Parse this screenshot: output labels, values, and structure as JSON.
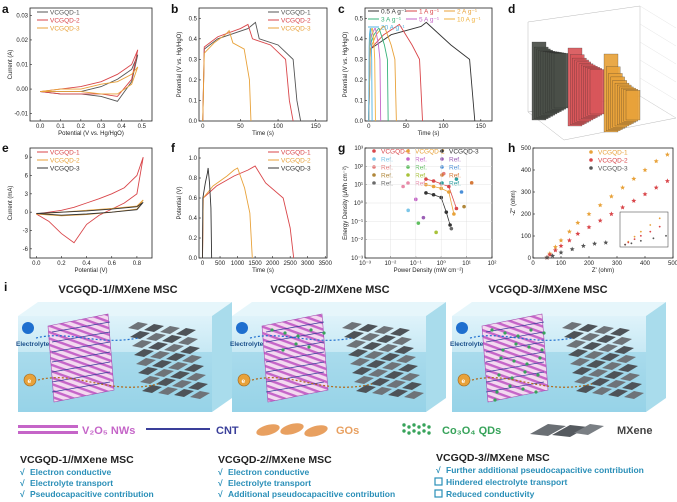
{
  "panel_labels": {
    "a": "a",
    "b": "b",
    "c": "c",
    "d": "d",
    "e": "e",
    "f": "f",
    "g": "g",
    "h": "h",
    "i": "i"
  },
  "colors": {
    "vcgqd1": "#555555",
    "vcgqd2": "#d9464a",
    "vcgqd3": "#e8a23a",
    "water": "#bfe6f2",
    "mxene": "#555a5f"
  },
  "chart_data": [
    {
      "id": "a",
      "type": "line",
      "xlabel": "Potential (V vs. Hg/HgO)",
      "ylabel": "Current (A)",
      "xticks": [
        "0.0",
        "0.1",
        "0.2",
        "0.3",
        "0.4",
        "0.5"
      ],
      "yticks": [
        "-0.01",
        "0.00",
        "0.01",
        "0.02",
        "0.03"
      ],
      "xlim": [
        -0.05,
        0.55
      ],
      "ylim": [
        -0.013,
        0.033
      ],
      "series": [
        {
          "name": "VCGQD-1",
          "color": "#555555",
          "x": [
            0,
            0.1,
            0.2,
            0.3,
            0.38,
            0.45,
            0.48,
            0.45,
            0.38,
            0.3,
            0.2,
            0.1,
            0
          ],
          "y": [
            -0.001,
            -0.001,
            -0.001,
            0.001,
            0.004,
            0.008,
            0.014,
            0.003,
            -0.005,
            -0.003,
            -0.002,
            -0.002,
            -0.001
          ]
        },
        {
          "name": "VCGQD-2",
          "color": "#d9464a",
          "x": [
            0,
            0.1,
            0.2,
            0.3,
            0.38,
            0.45,
            0.48,
            0.45,
            0.38,
            0.3,
            0.2,
            0.1,
            0
          ],
          "y": [
            -0.001,
            0,
            0.001,
            0.003,
            0.006,
            0.01,
            0.016,
            0.004,
            -0.003,
            -0.002,
            -0.002,
            -0.002,
            -0.001
          ]
        },
        {
          "name": "VCGQD-3",
          "color": "#e8a23a",
          "x": [
            0,
            0.1,
            0.2,
            0.3,
            0.38,
            0.45,
            0.48,
            0.45,
            0.38,
            0.3,
            0.2,
            0.1,
            0
          ],
          "y": [
            -0.001,
            0,
            0,
            0.002,
            0.003,
            0.006,
            0.009,
            0.002,
            -0.002,
            -0.002,
            -0.001,
            -0.001,
            -0.001
          ]
        }
      ]
    },
    {
      "id": "b",
      "type": "line",
      "xlabel": "Time (s)",
      "ylabel": "Potential (V vs. Hg/HgO)",
      "xticks": [
        "0",
        "50",
        "100",
        "150"
      ],
      "yticks": [
        "0.0",
        "0.1",
        "0.2",
        "0.3",
        "0.4",
        "0.5"
      ],
      "xlim": [
        -5,
        165
      ],
      "ylim": [
        0,
        0.55
      ],
      "series": [
        {
          "name": "VCGQD-1",
          "color": "#555555",
          "x": [
            0,
            2,
            20,
            60,
            70,
            75,
            100,
            120,
            125,
            130
          ],
          "y": [
            0,
            0.35,
            0.4,
            0.45,
            0.48,
            0.4,
            0.37,
            0.3,
            0.1,
            0
          ]
        },
        {
          "name": "VCGQD-2",
          "color": "#d9464a",
          "x": [
            0,
            2,
            20,
            50,
            60,
            66,
            90,
            110,
            115,
            120
          ],
          "y": [
            0,
            0.36,
            0.41,
            0.45,
            0.47,
            0.4,
            0.37,
            0.3,
            0.1,
            0
          ]
        },
        {
          "name": "VCGQD-3",
          "color": "#e8a23a",
          "x": [
            0,
            2,
            15,
            30,
            35,
            40,
            55,
            62,
            64
          ],
          "y": [
            0,
            0.33,
            0.38,
            0.42,
            0.44,
            0.38,
            0.35,
            0.2,
            0
          ]
        }
      ]
    },
    {
      "id": "c",
      "type": "line",
      "xlabel": "Time (s)",
      "ylabel": "Potential (V vs. Hg/HgO)",
      "xticks": [
        "0",
        "50",
        "100",
        "150"
      ],
      "yticks": [
        "0.0",
        "0.1",
        "0.2",
        "0.3",
        "0.4",
        "0.5"
      ],
      "xlim": [
        -5,
        165
      ],
      "ylim": [
        0,
        0.55
      ],
      "series": [
        {
          "name": "0.5 A g⁻¹",
          "color": "#333333",
          "x": [
            0,
            2,
            30,
            70,
            77,
            110,
            135,
            142
          ],
          "y": [
            0,
            0.35,
            0.42,
            0.46,
            0.48,
            0.37,
            0.3,
            0
          ]
        },
        {
          "name": "1 A g⁻¹",
          "color": "#d9464a",
          "x": [
            0,
            2,
            20,
            37,
            41,
            58,
            68,
            72
          ],
          "y": [
            0,
            0.35,
            0.42,
            0.46,
            0.47,
            0.37,
            0.3,
            0
          ]
        },
        {
          "name": "2 A g⁻¹",
          "color": "#e8a23a",
          "x": [
            0,
            2,
            10,
            19,
            21,
            30,
            35,
            37
          ],
          "y": [
            0,
            0.35,
            0.42,
            0.46,
            0.46,
            0.37,
            0.3,
            0
          ]
        },
        {
          "name": "3 A g⁻¹",
          "color": "#37b37a",
          "x": [
            0,
            1,
            7,
            13,
            14,
            21,
            25,
            26
          ],
          "y": [
            0,
            0.36,
            0.42,
            0.45,
            0.45,
            0.37,
            0.3,
            0
          ]
        },
        {
          "name": "5 A g⁻¹",
          "color": "#c565c8",
          "x": [
            0,
            1,
            4,
            8,
            9,
            13,
            15,
            16
          ],
          "y": [
            0,
            0.36,
            0.42,
            0.45,
            0.45,
            0.37,
            0.3,
            0
          ]
        },
        {
          "name": "10 A g⁻¹",
          "color": "#f0b23e",
          "x": [
            0,
            1,
            2,
            4,
            5,
            7,
            8,
            9
          ],
          "y": [
            0,
            0.36,
            0.42,
            0.45,
            0.45,
            0.37,
            0.3,
            0
          ]
        },
        {
          "name": "20 A g⁻¹",
          "color": "#4fb3e0",
          "x": [
            0,
            0.5,
            1,
            2,
            2.5,
            3.5,
            4,
            4.5
          ],
          "y": [
            0,
            0.36,
            0.42,
            0.45,
            0.45,
            0.37,
            0.3,
            0
          ]
        }
      ]
    },
    {
      "id": "d",
      "type": "bar",
      "series": [
        {
          "name": "VCGQD-1",
          "color": "#4a4f48",
          "values": [
            100,
            92,
            88,
            85,
            82,
            80,
            78,
            76,
            74,
            72,
            70
          ]
        },
        {
          "name": "VCGQD-2",
          "color": "#d9565a",
          "values": [
            100,
            90,
            84,
            80,
            76,
            72,
            69,
            66,
            63,
            60,
            57
          ]
        },
        {
          "name": "VCGQD-3",
          "color": "#e8a23a",
          "values": [
            100,
            82,
            72,
            66,
            60,
            55,
            51,
            47,
            44,
            41,
            38
          ]
        }
      ]
    },
    {
      "id": "e",
      "type": "line",
      "xlabel": "Potential (V)",
      "ylabel": "Current (mA)",
      "xticks": [
        "0.0",
        "0.2",
        "0.4",
        "0.6",
        "0.8"
      ],
      "yticks": [
        "-6",
        "-3",
        "0",
        "3",
        "6",
        "9"
      ],
      "xlim": [
        -0.05,
        0.92
      ],
      "ylim": [
        -7.5,
        10.5
      ],
      "series": [
        {
          "name": "VCGQD-1",
          "color": "#d9464a",
          "x": [
            0,
            0.1,
            0.2,
            0.3,
            0.4,
            0.5,
            0.6,
            0.7,
            0.8,
            0.85,
            0.8,
            0.7,
            0.6,
            0.5,
            0.4,
            0.3,
            0.2,
            0.1,
            0
          ],
          "y": [
            -0.3,
            0,
            0.3,
            0.8,
            1.5,
            2.2,
            3,
            4,
            6,
            9,
            3,
            1.5,
            0.5,
            -0.5,
            -2,
            -5,
            -3.5,
            -1.5,
            -0.3
          ]
        },
        {
          "name": "VCGQD-2",
          "color": "#e8a23a",
          "x": [
            0,
            0.2,
            0.4,
            0.6,
            0.8,
            0.85,
            0.8,
            0.6,
            0.4,
            0.2,
            0
          ],
          "y": [
            -0.3,
            0,
            0.3,
            0.6,
            1,
            2,
            0.5,
            0,
            -0.4,
            -0.6,
            -0.3
          ]
        },
        {
          "name": "VCGQD-3",
          "color": "#333333",
          "x": [
            0,
            0.2,
            0.4,
            0.6,
            0.8,
            0.85,
            0.8,
            0.6,
            0.4,
            0.2,
            0
          ],
          "y": [
            -0.2,
            0,
            0.2,
            0.5,
            0.9,
            1.6,
            0.4,
            0,
            -0.3,
            -0.5,
            -0.2
          ]
        }
      ]
    },
    {
      "id": "f",
      "type": "line",
      "xlabel": "Time (s)",
      "ylabel": "Potential (V)",
      "xticks": [
        "0",
        "500",
        "1000",
        "1500",
        "2000",
        "2500",
        "3000",
        "3500"
      ],
      "yticks": [
        "0.0",
        "0.2",
        "0.4",
        "0.6",
        "0.8",
        "1.0"
      ],
      "xlim": [
        -100,
        3550
      ],
      "ylim": [
        0,
        1.1
      ],
      "series": [
        {
          "name": "VCGQD-1",
          "color": "#d9464a",
          "x": [
            0,
            20,
            400,
            900,
            1300,
            1500,
            1800,
            2300,
            2500,
            2600
          ],
          "y": [
            0,
            0.6,
            0.72,
            0.82,
            0.88,
            0.92,
            0.75,
            0.6,
            0.3,
            0
          ]
        },
        {
          "name": "VCGQD-2",
          "color": "#e8a23a",
          "x": [
            0,
            20,
            300,
            700,
            900,
            1000,
            1200,
            1350,
            1420
          ],
          "y": [
            0,
            0.6,
            0.72,
            0.82,
            0.88,
            0.9,
            0.7,
            0.45,
            0
          ]
        },
        {
          "name": "VCGQD-3",
          "color": "#333333",
          "x": [
            0,
            10,
            80,
            140,
            160,
            200,
            240,
            260
          ],
          "y": [
            0,
            0.6,
            0.75,
            0.85,
            0.9,
            0.75,
            0.5,
            0
          ]
        }
      ]
    },
    {
      "id": "g",
      "type": "scatter",
      "xlabel": "Power Density  (mW cm⁻²)",
      "ylabel": "Energy Density (μWh cm⁻²)",
      "xticks": [
        "10⁻³",
        "10⁻²",
        "10⁻¹",
        "10⁰",
        "10¹",
        "10²"
      ],
      "yticks": [
        "10⁻³",
        "10⁻²",
        "10⁻¹",
        "10⁰",
        "10¹",
        "10²",
        "10³"
      ],
      "xlim": [
        -3,
        2
      ],
      "ylim": [
        -3,
        3
      ],
      "log": true,
      "series": [
        {
          "name": "VCGQD-1",
          "color": "#d9464a",
          "x": [
            -0.6,
            -0.3,
            0,
            0.3,
            0.6
          ],
          "y": [
            1.3,
            1.2,
            1.05,
            0.9,
            -0.3
          ]
        },
        {
          "name": "VCGQD-2",
          "color": "#e8a23a",
          "x": [
            -0.6,
            -0.3,
            0,
            0.3,
            0.5
          ],
          "y": [
            1.0,
            0.9,
            0.8,
            0.6,
            -0.6
          ]
        },
        {
          "name": "VCGQD-3",
          "color": "#333333",
          "x": [
            -0.6,
            -0.3,
            0,
            0.2,
            0.35
          ],
          "y": [
            0.55,
            0.45,
            0.3,
            -0.5,
            -1.2
          ]
        },
        {
          "name": "Ref.",
          "color": "#7cc6e8",
          "x": [
            -1.3
          ],
          "y": [
            -0.4
          ]
        },
        {
          "name": "Ref.",
          "color": "#c565c8",
          "x": [
            -1
          ],
          "y": [
            0.2
          ]
        },
        {
          "name": "Ref.",
          "color": "#9b5fb5",
          "x": [
            -0.7
          ],
          "y": [
            -0.8
          ]
        },
        {
          "name": "Ref.",
          "color": "#e57c7c",
          "x": [
            0.1
          ],
          "y": [
            1.6
          ]
        },
        {
          "name": "Ref.",
          "color": "#5fbf5f",
          "x": [
            -0.9
          ],
          "y": [
            -1.1
          ]
        },
        {
          "name": "Ref.",
          "color": "#4a8fd8",
          "x": [
            0.8
          ],
          "y": [
            0.6
          ]
        },
        {
          "name": "Ref.",
          "color": "#b0873a",
          "x": [
            0.9
          ],
          "y": [
            -0.2
          ]
        },
        {
          "name": "Ref.",
          "color": "#a8c23a",
          "x": [
            -0.2
          ],
          "y": [
            -1.6
          ]
        },
        {
          "name": "Ref.",
          "color": "#d67a3a",
          "x": [
            1.2
          ],
          "y": [
            1.1
          ]
        },
        {
          "name": "Ref.",
          "color": "#6a6a6a",
          "x": [
            0.4
          ],
          "y": [
            -1.4
          ]
        },
        {
          "name": "Ref.",
          "color": "#e88aa8",
          "x": [
            -1.5
          ],
          "y": [
            0.9
          ]
        },
        {
          "name": "Ref.",
          "color": "#2f9fa0",
          "x": [
            0.6
          ],
          "y": [
            1.3
          ]
        }
      ]
    },
    {
      "id": "h",
      "type": "scatter",
      "xlabel": "Z' (ohm)",
      "ylabel": "-Z'' (ohm)",
      "xticks": [
        "0",
        "100",
        "200",
        "300",
        "400",
        "500"
      ],
      "yticks": [
        "0",
        "100",
        "200",
        "300",
        "400",
        "500"
      ],
      "xlim": [
        0,
        500
      ],
      "ylim": [
        0,
        500
      ],
      "series": [
        {
          "name": "VCGQD-1",
          "color": "#e8a23a",
          "x": [
            50,
            60,
            80,
            100,
            130,
            160,
            200,
            240,
            280,
            320,
            360,
            400,
            440,
            480
          ],
          "y": [
            2,
            20,
            50,
            80,
            120,
            160,
            200,
            240,
            280,
            320,
            360,
            400,
            440,
            470
          ]
        },
        {
          "name": "VCGQD-2",
          "color": "#d9464a",
          "x": [
            50,
            60,
            80,
            100,
            130,
            160,
            200,
            240,
            280,
            320,
            360,
            400,
            440,
            480
          ],
          "y": [
            2,
            15,
            35,
            55,
            80,
            110,
            140,
            170,
            200,
            230,
            260,
            290,
            320,
            350
          ]
        },
        {
          "name": "VCGQD-3",
          "color": "#555555",
          "x": [
            50,
            70,
            100,
            140,
            180,
            220,
            260
          ],
          "y": [
            2,
            10,
            25,
            40,
            55,
            65,
            70
          ]
        }
      ]
    }
  ],
  "schematic": {
    "titles": [
      "VCGQD-1//MXene MSC",
      "VCGQD-2//MXene MSC",
      "VCGQD-3//MXene MSC"
    ],
    "electrolyte_label": "Electrolyte",
    "electron_symbol": "e",
    "legend": [
      {
        "label": "V₂O₅ NWs",
        "color": "#c565c8"
      },
      {
        "label": "CNT",
        "color": "#3a3f9a"
      },
      {
        "label": "GOs",
        "color": "#e8a060"
      },
      {
        "label": "Co₃O₄ QDs",
        "color": "#37a35a"
      },
      {
        "label": "MXene",
        "color": "#555a5f"
      }
    ]
  },
  "summaries": [
    {
      "title": "VCGQD-1//MXene MSC",
      "items": [
        {
          "mark": "check",
          "text": "Electron conductive"
        },
        {
          "mark": "check",
          "text": "Electrolyte transport"
        },
        {
          "mark": "check",
          "text": "Pseudocapacitive contribution"
        }
      ]
    },
    {
      "title": "VCGQD-2//MXene MSC",
      "items": [
        {
          "mark": "check",
          "text": "Electron conductive"
        },
        {
          "mark": "check",
          "text": "Electrolyte transport"
        },
        {
          "mark": "check",
          "text": "Additional pseudocapacitive contribution"
        }
      ]
    },
    {
      "title": "VCGQD-3//MXene MSC",
      "items": [
        {
          "mark": "check",
          "text": "Further additional pseudocapacitive contribution"
        },
        {
          "mark": "box",
          "text": "Hindered electrolyte transport"
        },
        {
          "mark": "box",
          "text": "Reduced conductivity"
        }
      ]
    }
  ]
}
